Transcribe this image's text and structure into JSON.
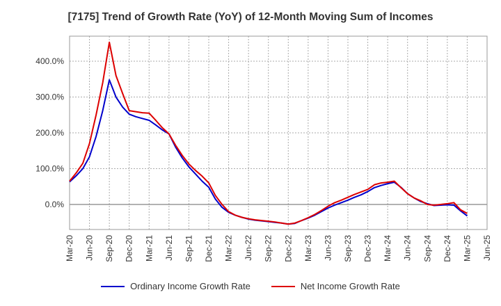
{
  "chart_data": {
    "type": "line",
    "title": "[7175]  Trend of Growth Rate (YoY) of 12-Month Moving Sum of Incomes",
    "xlabel": "",
    "ylabel": "",
    "ylim": [
      -70,
      470
    ],
    "y_ticks": [
      0,
      100,
      200,
      300,
      400
    ],
    "y_tick_labels": [
      "0.0%",
      "100.0%",
      "200.0%",
      "300.0%",
      "400.0%"
    ],
    "x_tick_labels": [
      "Mar-20",
      "Jun-20",
      "Sep-20",
      "Dec-20",
      "Mar-21",
      "Jun-21",
      "Sep-21",
      "Dec-21",
      "Mar-22",
      "Jun-22",
      "Sep-22",
      "Dec-22",
      "Mar-23",
      "Jun-23",
      "Sep-23",
      "Dec-23",
      "Mar-24",
      "Jun-24",
      "Sep-24",
      "Dec-24",
      "Mar-25",
      "Jun-25"
    ],
    "grid": true,
    "legend_position": "bottom",
    "x": [
      "Mar-20",
      "Apr-20",
      "May-20",
      "Jun-20",
      "Jul-20",
      "Aug-20",
      "Sep-20",
      "Oct-20",
      "Nov-20",
      "Dec-20",
      "Jan-21",
      "Feb-21",
      "Mar-21",
      "Apr-21",
      "May-21",
      "Jun-21",
      "Jul-21",
      "Aug-21",
      "Sep-21",
      "Oct-21",
      "Nov-21",
      "Dec-21",
      "Jan-22",
      "Feb-22",
      "Mar-22",
      "Apr-22",
      "May-22",
      "Jun-22",
      "Jul-22",
      "Aug-22",
      "Sep-22",
      "Oct-22",
      "Nov-22",
      "Dec-22",
      "Jan-23",
      "Feb-23",
      "Mar-23",
      "Apr-23",
      "May-23",
      "Jun-23",
      "Jul-23",
      "Aug-23",
      "Sep-23",
      "Oct-23",
      "Nov-23",
      "Dec-23",
      "Jan-24",
      "Feb-24",
      "Mar-24",
      "Apr-24",
      "May-24",
      "Jun-24",
      "Jul-24",
      "Aug-24",
      "Sep-24",
      "Oct-24",
      "Nov-24",
      "Dec-24",
      "Jan-25",
      "Feb-25",
      "Mar-25"
    ],
    "series": [
      {
        "name": "Ordinary Income Growth Rate",
        "color": "#0000cc",
        "values": [
          63,
          80,
          100,
          133,
          190,
          262,
          348,
          300,
          272,
          252,
          245,
          240,
          235,
          222,
          208,
          197,
          160,
          130,
          105,
          85,
          65,
          48,
          15,
          -8,
          -22,
          -30,
          -36,
          -41,
          -44,
          -46,
          -48,
          -50,
          -52,
          -55,
          -53,
          -45,
          -38,
          -30,
          -20,
          -10,
          -2,
          5,
          12,
          20,
          27,
          36,
          47,
          53,
          58,
          62,
          48,
          30,
          18,
          8,
          2,
          -3,
          -2,
          -1,
          -2,
          -18,
          -32
        ]
      },
      {
        "name": "Net Income Growth Rate",
        "color": "#dd0000",
        "values": [
          65,
          88,
          115,
          170,
          250,
          340,
          453,
          360,
          310,
          262,
          259,
          256,
          255,
          235,
          214,
          197,
          165,
          137,
          113,
          95,
          79,
          60,
          25,
          0,
          -20,
          -30,
          -36,
          -40,
          -43,
          -45,
          -47,
          -49,
          -52,
          -55,
          -52,
          -45,
          -37,
          -28,
          -17,
          -5,
          5,
          12,
          20,
          28,
          35,
          42,
          55,
          60,
          62,
          65,
          47,
          30,
          18,
          10,
          0,
          -2,
          0,
          2,
          5,
          -15,
          -25
        ]
      }
    ]
  }
}
